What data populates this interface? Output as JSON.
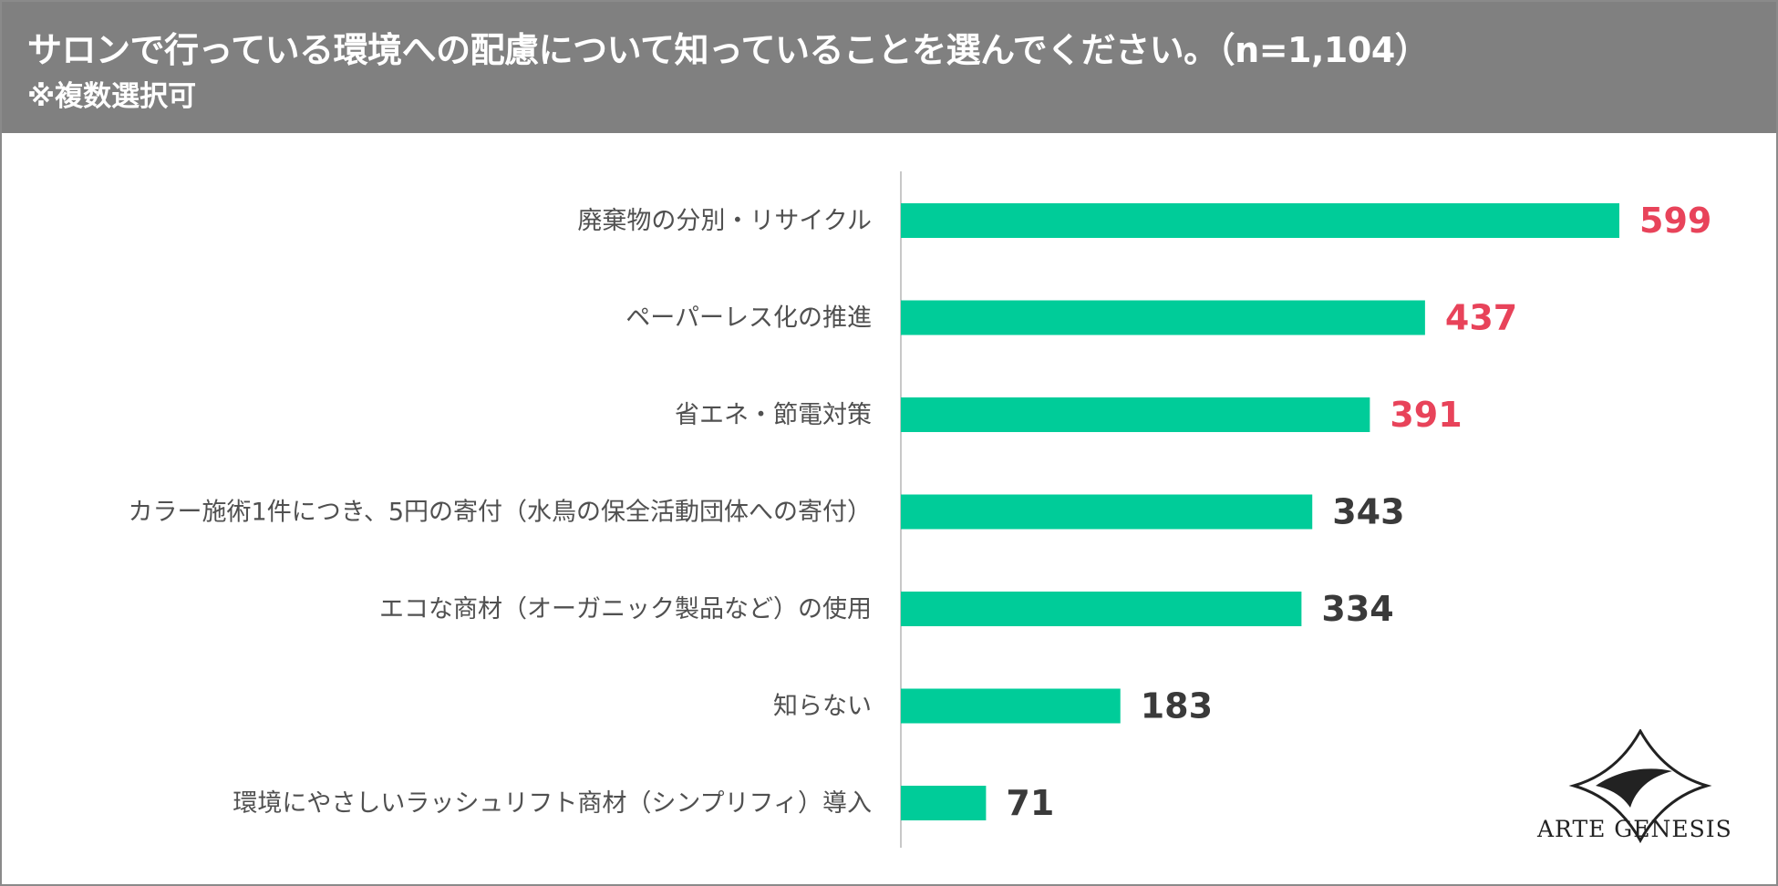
{
  "header": {
    "title": "サロンで行っている環境への配慮について知っていることを選んでください。（n=1,104）",
    "subtitle": "※複数選択可"
  },
  "chart_data": {
    "type": "bar",
    "orientation": "horizontal",
    "title": "サロンで行っている環境への配慮について知っていることを選んでください。（n=1,104）",
    "subtitle": "※複数選択可",
    "categories": [
      "廃棄物の分別・リサイクル",
      "ペーパーレス化の推進",
      "省エネ・節電対策",
      "カラー施術1件につき、5円の寄付（水鳥の保全活動団体への寄付）",
      "エコな商材（オーガニック製品など）の使用",
      "知らない",
      "環境にやさしいラッシュリフト商材（シンプリフィ）導入"
    ],
    "values": [
      599,
      437,
      391,
      343,
      334,
      183,
      71
    ],
    "highlight_top_n": 3,
    "xlim": [
      0,
      700
    ],
    "grid": false,
    "bar_color": "#00cc99",
    "highlight_color": "#e8435a",
    "label_color": "#3a3a3a"
  },
  "brand": {
    "name": "ARTE GENESIS",
    "logo_icon": "arte-genesis-logo-icon"
  }
}
